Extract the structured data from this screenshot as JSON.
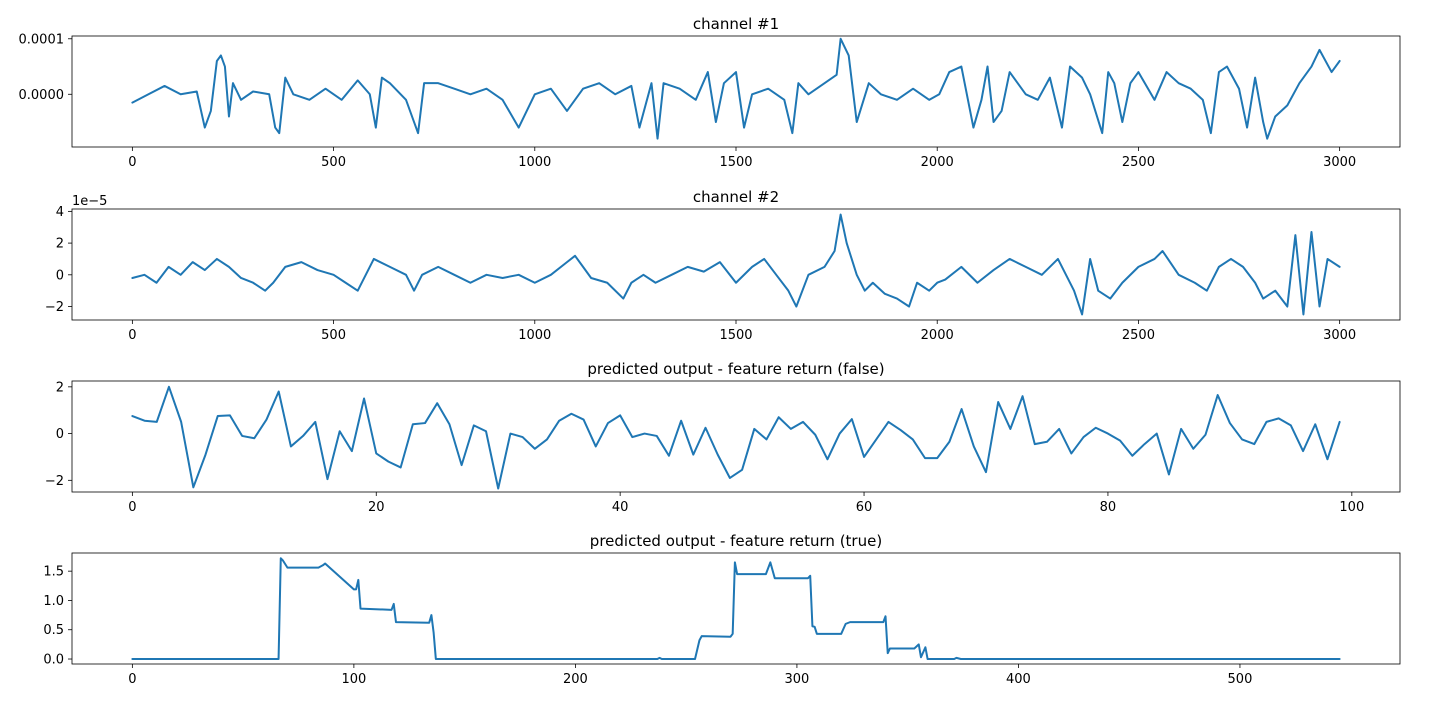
{
  "chart_data": [
    {
      "type": "line",
      "title": "channel #1",
      "xlim": [
        -150,
        3150
      ],
      "ylim": [
        -9.5e-05,
        0.000105
      ],
      "xticks": [
        0,
        500,
        1000,
        1500,
        2000,
        2500,
        3000
      ],
      "xtick_labels": [
        "0",
        "500",
        "1000",
        "1500",
        "2000",
        "2500",
        "3000"
      ],
      "yticks": [
        0.0,
        0.0001
      ],
      "ytick_labels": [
        "0.0000",
        "0.0001"
      ],
      "offset_label": "",
      "color": "#1f77b4",
      "series": [
        {
          "x": [
            0,
            40,
            80,
            120,
            160,
            180,
            195,
            210,
            220,
            230,
            240,
            250,
            270,
            300,
            340,
            355,
            365,
            380,
            400,
            440,
            480,
            520,
            560,
            590,
            605,
            620,
            640,
            680,
            700,
            710,
            725,
            760,
            800,
            840,
            880,
            920,
            960,
            1000,
            1040,
            1080,
            1120,
            1160,
            1200,
            1240,
            1260,
            1290,
            1305,
            1320,
            1360,
            1400,
            1430,
            1450,
            1470,
            1500,
            1520,
            1540,
            1580,
            1620,
            1640,
            1655,
            1680,
            1720,
            1750,
            1760,
            1780,
            1800,
            1830,
            1860,
            1900,
            1940,
            1980,
            2005,
            2030,
            2060,
            2090,
            2110,
            2125,
            2140,
            2160,
            2180,
            2200,
            2220,
            2250,
            2280,
            2310,
            2330,
            2360,
            2380,
            2410,
            2425,
            2440,
            2460,
            2480,
            2500,
            2540,
            2570,
            2600,
            2630,
            2660,
            2680,
            2700,
            2720,
            2750,
            2770,
            2790,
            2810,
            2820,
            2840,
            2870,
            2900,
            2930,
            2950,
            2980,
            3000
          ],
          "y": [
            -1.5e-05,
            0.0,
            1.5e-05,
            0.0,
            5e-06,
            -6e-05,
            -3e-05,
            6e-05,
            7e-05,
            5e-05,
            -4e-05,
            2e-05,
            -1e-05,
            5e-06,
            0.0,
            -6e-05,
            -7e-05,
            3e-05,
            0.0,
            -1e-05,
            1e-05,
            -1e-05,
            2.5e-05,
            0.0,
            -6e-05,
            3e-05,
            2e-05,
            -1e-05,
            -5e-05,
            -7e-05,
            2e-05,
            2e-05,
            1e-05,
            0.0,
            1e-05,
            -1e-05,
            -6e-05,
            0.0,
            1e-05,
            -3e-05,
            1e-05,
            2e-05,
            0.0,
            1.5e-05,
            -6e-05,
            2e-05,
            -8e-05,
            2e-05,
            1e-05,
            -1e-05,
            4e-05,
            -5e-05,
            2e-05,
            4e-05,
            -6e-05,
            0.0,
            1e-05,
            -1e-05,
            -7e-05,
            2e-05,
            0.0,
            2e-05,
            3.5e-05,
            0.0001,
            7e-05,
            -5e-05,
            2e-05,
            0.0,
            -1e-05,
            1e-05,
            -1e-05,
            0.0,
            4e-05,
            5e-05,
            -6e-05,
            -1e-05,
            5e-05,
            -5e-05,
            -3e-05,
            4e-05,
            2e-05,
            0.0,
            -1e-05,
            3e-05,
            -6e-05,
            5e-05,
            3e-05,
            0.0,
            -7e-05,
            4e-05,
            2e-05,
            -5e-05,
            2e-05,
            4e-05,
            -1e-05,
            4e-05,
            2e-05,
            1e-05,
            -1e-05,
            -7e-05,
            4e-05,
            5e-05,
            1e-05,
            -6e-05,
            3e-05,
            -5e-05,
            -8e-05,
            -4e-05,
            -2e-05,
            2e-05,
            5e-05,
            8e-05,
            4e-05,
            6e-05
          ]
        }
      ]
    },
    {
      "type": "line",
      "title": "channel #2",
      "xlim": [
        -150,
        3150
      ],
      "ylim": [
        -2.85,
        4.15
      ],
      "xticks": [
        0,
        500,
        1000,
        1500,
        2000,
        2500,
        3000
      ],
      "xtick_labels": [
        "0",
        "500",
        "1000",
        "1500",
        "2000",
        "2500",
        "3000"
      ],
      "yticks": [
        -2,
        0,
        2,
        4
      ],
      "ytick_labels": [
        "−2",
        "0",
        "2",
        "4"
      ],
      "offset_label": "1e−5",
      "color": "#1f77b4",
      "series": [
        {
          "x": [
            0,
            30,
            60,
            90,
            120,
            150,
            180,
            210,
            240,
            270,
            300,
            330,
            350,
            380,
            420,
            460,
            500,
            530,
            560,
            600,
            640,
            680,
            700,
            720,
            760,
            800,
            840,
            880,
            920,
            960,
            1000,
            1040,
            1080,
            1100,
            1120,
            1140,
            1180,
            1220,
            1240,
            1270,
            1300,
            1340,
            1380,
            1420,
            1460,
            1500,
            1540,
            1570,
            1600,
            1630,
            1650,
            1680,
            1720,
            1745,
            1760,
            1775,
            1800,
            1820,
            1840,
            1870,
            1900,
            1930,
            1950,
            1980,
            2000,
            2020,
            2060,
            2100,
            2140,
            2180,
            2220,
            2260,
            2300,
            2340,
            2360,
            2380,
            2400,
            2430,
            2460,
            2500,
            2540,
            2560,
            2600,
            2640,
            2670,
            2700,
            2730,
            2760,
            2790,
            2810,
            2840,
            2870,
            2890,
            2910,
            2930,
            2950,
            2970,
            3000
          ],
          "y": [
            -0.2,
            0.0,
            -0.5,
            0.5,
            0.0,
            0.8,
            0.3,
            1.0,
            0.5,
            -0.2,
            -0.5,
            -1.0,
            -0.5,
            0.5,
            0.8,
            0.3,
            0.0,
            -0.5,
            -1.0,
            1.0,
            0.5,
            0.0,
            -1.0,
            0.0,
            0.5,
            0.0,
            -0.5,
            0.0,
            -0.2,
            0.0,
            -0.5,
            0.0,
            0.8,
            1.2,
            0.5,
            -0.2,
            -0.5,
            -1.5,
            -0.5,
            0.0,
            -0.5,
            0.0,
            0.5,
            0.2,
            0.8,
            -0.5,
            0.5,
            1.0,
            0.0,
            -1.0,
            -2.0,
            0.0,
            0.5,
            1.5,
            3.8,
            2.0,
            0.0,
            -1.0,
            -0.5,
            -1.2,
            -1.5,
            -2.0,
            -0.5,
            -1.0,
            -0.5,
            -0.3,
            0.5,
            -0.5,
            0.3,
            1.0,
            0.5,
            0.0,
            1.0,
            -1.0,
            -2.5,
            1.0,
            -1.0,
            -1.5,
            -0.5,
            0.5,
            1.0,
            1.5,
            0.0,
            -0.5,
            -1.0,
            0.5,
            1.0,
            0.5,
            -0.5,
            -1.5,
            -1.0,
            -2.0,
            2.5,
            -2.5,
            2.7,
            -2.0,
            1.0,
            0.5
          ]
        }
      ]
    },
    {
      "type": "line",
      "title": "predicted output - feature return (false)",
      "xlim": [
        -4.95,
        103.95
      ],
      "ylim": [
        -2.5,
        2.25
      ],
      "xticks": [
        0,
        20,
        40,
        60,
        80,
        100
      ],
      "xtick_labels": [
        "0",
        "20",
        "40",
        "60",
        "80",
        "100"
      ],
      "yticks": [
        -2,
        0,
        2
      ],
      "ytick_labels": [
        "−2",
        "0",
        "2"
      ],
      "offset_label": "",
      "color": "#1f77b4",
      "series": [
        {
          "x": [
            0,
            1,
            2,
            3,
            4,
            5,
            6,
            7,
            8,
            9,
            10,
            11,
            12,
            13,
            14,
            15,
            16,
            17,
            18,
            19,
            20,
            21,
            22,
            23,
            24,
            25,
            26,
            27,
            28,
            29,
            30,
            31,
            32,
            33,
            34,
            35,
            36,
            37,
            38,
            39,
            40,
            41,
            42,
            43,
            44,
            45,
            46,
            47,
            48,
            49,
            50,
            51,
            52,
            53,
            54,
            55,
            56,
            57,
            58,
            59,
            60,
            61,
            62,
            63,
            64,
            65,
            66,
            67,
            68,
            69,
            70,
            71,
            72,
            73,
            74,
            75,
            76,
            77,
            78,
            79,
            80,
            81,
            82,
            83,
            84,
            85,
            86,
            87,
            88,
            89,
            90,
            91,
            92,
            93,
            94,
            95,
            96,
            97,
            98,
            99
          ],
          "y": [
            0.75,
            0.55,
            0.5,
            2.0,
            0.5,
            -2.3,
            -0.9,
            0.75,
            0.78,
            -0.1,
            -0.2,
            0.6,
            1.8,
            -0.55,
            -0.1,
            0.5,
            -1.95,
            0.1,
            -0.75,
            1.5,
            -0.85,
            -1.2,
            -1.45,
            0.4,
            0.45,
            1.3,
            0.4,
            -1.35,
            0.35,
            0.1,
            -2.35,
            0.0,
            -0.15,
            -0.65,
            -0.25,
            0.55,
            0.85,
            0.6,
            -0.55,
            0.45,
            0.78,
            -0.15,
            0.0,
            -0.1,
            -0.95,
            0.55,
            -0.9,
            0.25,
            -0.9,
            -1.9,
            -1.55,
            0.2,
            -0.25,
            0.7,
            0.2,
            0.5,
            -0.05,
            -1.1,
            0.0,
            0.62,
            -1.0,
            -0.25,
            0.5,
            0.15,
            -0.25,
            -1.05,
            -1.05,
            -0.35,
            1.05,
            -0.55,
            -1.65,
            1.35,
            0.2,
            1.6,
            -0.45,
            -0.35,
            0.2,
            -0.85,
            -0.15,
            0.25,
            0.0,
            -0.3,
            -0.95,
            -0.45,
            0.0,
            -1.75,
            0.2,
            -0.65,
            -0.05,
            1.65,
            0.45,
            -0.25,
            -0.45,
            0.5,
            0.65,
            0.35,
            -0.75,
            0.4,
            -1.1,
            0.5
          ]
        }
      ]
    },
    {
      "type": "line",
      "title": "predicted output - feature return (true)",
      "xlim": [
        -27.25,
        572.25
      ],
      "ylim": [
        -0.085,
        1.81
      ],
      "xticks": [
        0,
        100,
        200,
        300,
        400,
        500
      ],
      "xtick_labels": [
        "0",
        "100",
        "200",
        "300",
        "400",
        "500"
      ],
      "yticks": [
        0.0,
        0.5,
        1.0,
        1.5
      ],
      "ytick_labels": [
        "0.0",
        "0.5",
        "1.0",
        "1.5"
      ],
      "offset_label": "",
      "color": "#1f77b4",
      "series": [
        {
          "x": [
            0,
            66,
            67,
            68,
            70,
            84,
            86,
            87,
            100,
            101,
            102,
            103,
            117,
            118,
            119,
            134,
            135,
            136,
            137,
            237,
            238,
            239,
            254,
            256,
            257,
            270,
            271,
            272,
            273,
            286,
            288,
            290,
            305,
            306,
            307,
            308,
            309,
            311,
            320,
            322,
            324,
            339,
            340,
            341,
            342,
            353,
            355,
            356,
            358,
            359,
            360,
            371,
            372,
            374,
            376,
            545
          ],
          "y": [
            0.0,
            0.0,
            1.72,
            1.68,
            1.56,
            1.56,
            1.6,
            1.63,
            1.19,
            1.19,
            1.35,
            0.86,
            0.84,
            0.94,
            0.63,
            0.62,
            0.75,
            0.45,
            0.0,
            0.0,
            0.02,
            0.0,
            0.0,
            0.32,
            0.39,
            0.38,
            0.43,
            1.65,
            1.45,
            1.45,
            1.65,
            1.38,
            1.38,
            1.42,
            0.56,
            0.55,
            0.43,
            0.43,
            0.43,
            0.6,
            0.63,
            0.63,
            0.73,
            0.1,
            0.18,
            0.18,
            0.25,
            0.03,
            0.2,
            0.0,
            0.0,
            0.0,
            0.02,
            0.0,
            0.0,
            0.0
          ]
        }
      ]
    }
  ]
}
